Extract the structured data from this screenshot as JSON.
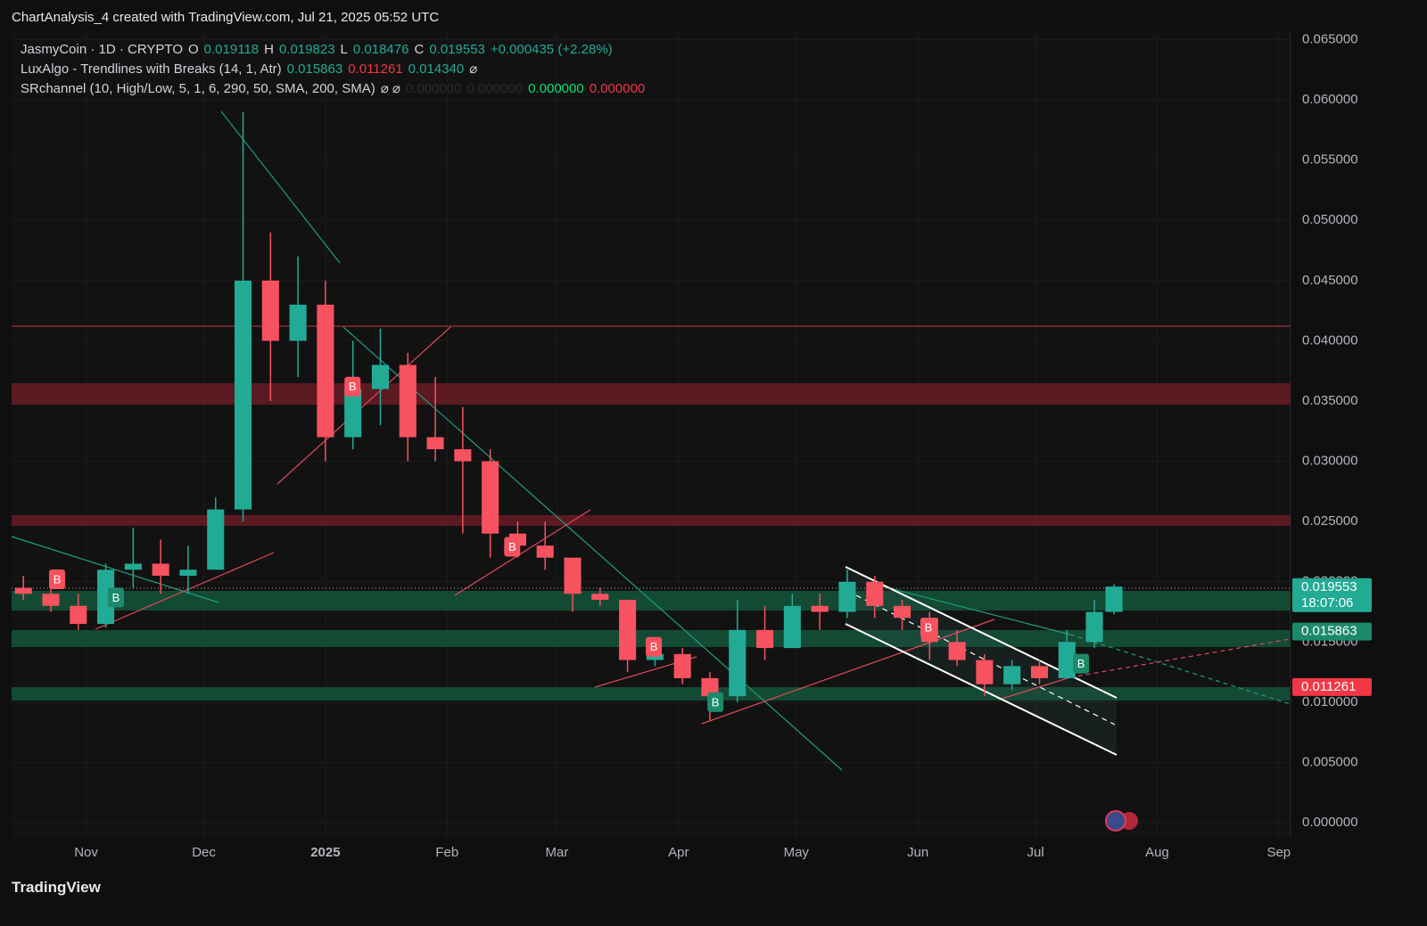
{
  "header": {
    "caption": "ChartAnalysis_4 created with TradingView.com, Jul 21, 2025 05:52 UTC",
    "legend_rows": [
      [
        {
          "text": "JasmyCoin · 1D · CRYPTO",
          "color": "#d1d4dc"
        },
        {
          "text": "O",
          "color": "#d1d4dc"
        },
        {
          "text": "0.019118",
          "color": "#22ab94"
        },
        {
          "text": "H",
          "color": "#d1d4dc"
        },
        {
          "text": "0.019823",
          "color": "#22ab94"
        },
        {
          "text": "L",
          "color": "#d1d4dc"
        },
        {
          "text": "0.018476",
          "color": "#22ab94"
        },
        {
          "text": "C",
          "color": "#d1d4dc"
        },
        {
          "text": "0.019553",
          "color": "#22ab94"
        },
        {
          "text": "+0.000435 (+2.28%)",
          "color": "#22ab94"
        }
      ],
      [
        {
          "text": "LuxAlgo - Trendlines with Breaks (14, 1, Atr)",
          "color": "#d1d4dc"
        },
        {
          "text": "0.015863",
          "color": "#22ab94"
        },
        {
          "text": "0.011261",
          "color": "#f23645"
        },
        {
          "text": "0.014340",
          "color": "#22ab94"
        },
        {
          "text": "⌀",
          "color": "#d1d4dc"
        }
      ],
      [
        {
          "text": "SRchannel (10, High/Low, 5, 1, 6, 290, 50, SMA, 200, SMA)",
          "color": "#d1d4dc"
        },
        {
          "text": "⌀ ⌀",
          "color": "#d1d4dc"
        },
        {
          "text": "0.000000",
          "color": "#2a2a2a"
        },
        {
          "text": "0.000000",
          "color": "#2a2a2a"
        },
        {
          "text": "0.000000",
          "color": "#00e676"
        },
        {
          "text": "0.000000",
          "color": "#f23645"
        }
      ]
    ]
  },
  "chart_data": {
    "type": "candlestick",
    "up_color": "#22ab94",
    "down_color": "#f7525f",
    "x": [
      3,
      10,
      17,
      24,
      31,
      38,
      45,
      52,
      59,
      66,
      73,
      80,
      87,
      94,
      101,
      108,
      115,
      122,
      129,
      136,
      143,
      150,
      157,
      164,
      171,
      178,
      185,
      192,
      199,
      206,
      213,
      220,
      227,
      234,
      241,
      248,
      255,
      262,
      269,
      276,
      281
    ],
    "open": [
      0.0195,
      0.019,
      0.018,
      0.0165,
      0.021,
      0.0215,
      0.0205,
      0.021,
      0.026,
      0.045,
      0.04,
      0.043,
      0.032,
      0.036,
      0.038,
      0.032,
      0.031,
      0.03,
      0.024,
      0.023,
      0.022,
      0.019,
      0.0185,
      0.0135,
      0.014,
      0.012,
      0.0105,
      0.016,
      0.0145,
      0.018,
      0.0175,
      0.02,
      0.018,
      0.017,
      0.015,
      0.0135,
      0.0115,
      0.013,
      0.012,
      0.015,
      0.0175
    ],
    "high": [
      0.0205,
      0.02,
      0.019,
      0.0215,
      0.0245,
      0.0235,
      0.023,
      0.027,
      0.059,
      0.049,
      0.047,
      0.045,
      0.04,
      0.041,
      0.039,
      0.037,
      0.0345,
      0.031,
      0.025,
      0.025,
      0.022,
      0.0195,
      0.0185,
      0.015,
      0.0145,
      0.0125,
      0.0185,
      0.018,
      0.019,
      0.019,
      0.021,
      0.0205,
      0.0185,
      0.0175,
      0.016,
      0.014,
      0.0135,
      0.0135,
      0.016,
      0.0185,
      0.0198
    ],
    "low": [
      0.0185,
      0.0175,
      0.016,
      0.0162,
      0.0195,
      0.019,
      0.019,
      0.021,
      0.025,
      0.035,
      0.037,
      0.03,
      0.031,
      0.033,
      0.03,
      0.03,
      0.024,
      0.022,
      0.022,
      0.021,
      0.0175,
      0.018,
      0.0125,
      0.013,
      0.0115,
      0.0085,
      0.01,
      0.0135,
      0.0145,
      0.016,
      0.017,
      0.017,
      0.016,
      0.0135,
      0.013,
      0.0105,
      0.011,
      0.0115,
      0.012,
      0.0145,
      0.0173
    ],
    "close": [
      0.019,
      0.018,
      0.0165,
      0.021,
      0.0215,
      0.0205,
      0.021,
      0.026,
      0.045,
      0.04,
      0.043,
      0.032,
      0.036,
      0.038,
      0.032,
      0.031,
      0.03,
      0.024,
      0.023,
      0.022,
      0.019,
      0.0185,
      0.0135,
      0.014,
      0.012,
      0.0105,
      0.016,
      0.0145,
      0.018,
      0.0175,
      0.02,
      0.018,
      0.017,
      0.015,
      0.0135,
      0.0115,
      0.013,
      0.012,
      0.015,
      0.0175,
      0.0196
    ],
    "xlim": [
      0,
      326
    ],
    "ylim": [
      -0.00125,
      0.0657
    ],
    "xticks": [
      {
        "value": 19,
        "label": "Nov"
      },
      {
        "value": 49,
        "label": "Dec"
      },
      {
        "value": 80,
        "label": "2025"
      },
      {
        "value": 111,
        "label": "Feb"
      },
      {
        "value": 139,
        "label": "Mar"
      },
      {
        "value": 170,
        "label": "Apr"
      },
      {
        "value": 200,
        "label": "May"
      },
      {
        "value": 231,
        "label": "Jun"
      },
      {
        "value": 261,
        "label": "Jul"
      },
      {
        "value": 292,
        "label": "Aug"
      },
      {
        "value": 323,
        "label": "Sep"
      }
    ],
    "yticks": [
      {
        "value": 0.065,
        "label": "0.065000"
      },
      {
        "value": 0.06,
        "label": "0.060000"
      },
      {
        "value": 0.055,
        "label": "0.055000"
      },
      {
        "value": 0.05,
        "label": "0.050000"
      },
      {
        "value": 0.045,
        "label": "0.045000"
      },
      {
        "value": 0.04,
        "label": "0.040000"
      },
      {
        "value": 0.035,
        "label": "0.035000"
      },
      {
        "value": 0.03,
        "label": "0.030000"
      },
      {
        "value": 0.025,
        "label": "0.025000"
      },
      {
        "value": 0.02,
        "label": "0.020000"
      },
      {
        "value": 0.015,
        "label": "0.015000"
      },
      {
        "value": 0.01,
        "label": "0.010000"
      },
      {
        "value": 0.005,
        "label": "0.005000"
      },
      {
        "value": 0,
        "label": "0.000000"
      }
    ],
    "price_tags": [
      {
        "value": 0.019553,
        "countdown": "18:07:06",
        "color": "#22ab94"
      },
      {
        "value": 0.015863,
        "color": "#1b8a6b"
      },
      {
        "value": 0.011261,
        "color": "#f23645"
      }
    ],
    "markers": [
      {
        "label": "B",
        "x": 11.6,
        "y": 0.0202,
        "color": "#f7525f"
      },
      {
        "label": "B",
        "x": 26.6,
        "y": 0.0187,
        "color": "#1b8a6b"
      },
      {
        "label": "B",
        "x": 86.9,
        "y": 0.0362,
        "color": "#f7525f"
      },
      {
        "label": "B",
        "x": 127.6,
        "y": 0.0229,
        "color": "#f7525f"
      },
      {
        "label": "B",
        "x": 163.7,
        "y": 0.0146,
        "color": "#f7525f"
      },
      {
        "label": "B",
        "x": 179.4,
        "y": 0.01,
        "color": "#1b8a6b"
      },
      {
        "label": "B",
        "x": 233.7,
        "y": 0.0162,
        "color": "#f7525f"
      },
      {
        "label": "B",
        "x": 272.6,
        "y": 0.0132,
        "color": "#1b8a6b"
      }
    ],
    "grid": true
  },
  "footer": {
    "brand": "TradingView"
  }
}
